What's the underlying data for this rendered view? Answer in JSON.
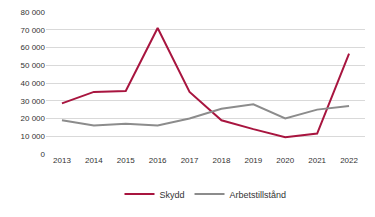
{
  "chart_data": {
    "type": "line",
    "categories": [
      "2013",
      "2014",
      "2015",
      "2016",
      "2017",
      "2018",
      "2019",
      "2020",
      "2021",
      "2022"
    ],
    "series": [
      {
        "name": "Skydd",
        "color": "#a8153f",
        "values": [
          28500,
          35000,
          35500,
          71000,
          35000,
          19000,
          14000,
          9500,
          11500,
          56500
        ]
      },
      {
        "name": "Arbetstillstånd",
        "color": "#8c8c8c",
        "values": [
          19000,
          16000,
          17000,
          16000,
          20000,
          25500,
          28000,
          20000,
          25000,
          27000
        ]
      }
    ],
    "ylim": [
      0,
      80000
    ],
    "yticks": [
      0,
      {
        "value": 10000,
        "label": "10 000"
      },
      {
        "value": 20000,
        "label": "20 000"
      },
      {
        "value": 30000,
        "label": "30 000"
      },
      {
        "value": 40000,
        "label": "40 000"
      },
      {
        "value": 50000,
        "label": "50 000"
      },
      {
        "value": 60000,
        "label": "60 000"
      },
      {
        "value": 70000,
        "label": "70 000"
      },
      {
        "value": 80000,
        "label": "80 000"
      }
    ],
    "grid": true,
    "legend": "bottom"
  }
}
